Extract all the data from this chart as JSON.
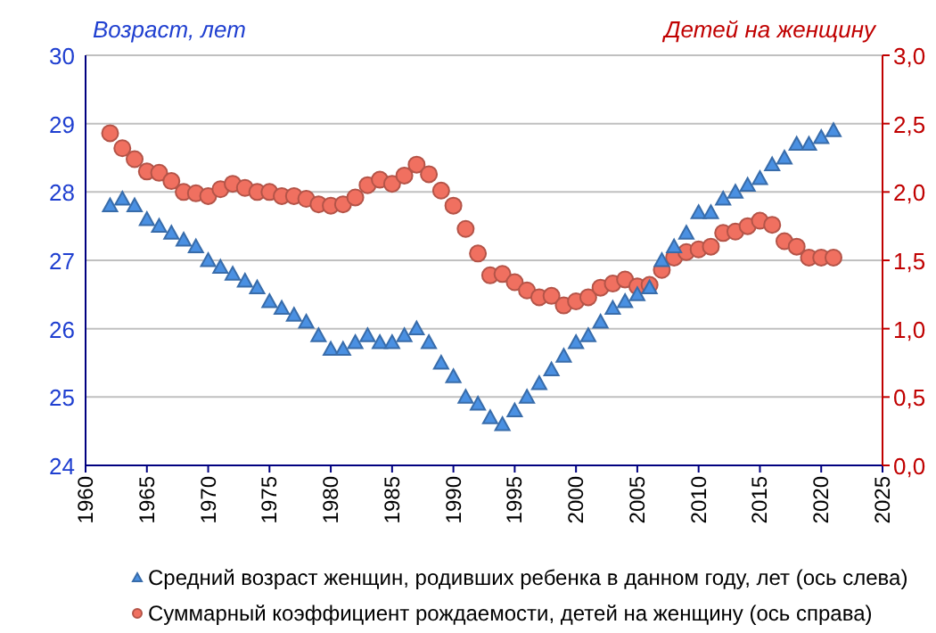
{
  "chart_data": {
    "type": "scatter",
    "ylabel": "Возраст, лет",
    "y2label": "Детей на женщину",
    "x": [
      1962,
      1963,
      1964,
      1965,
      1966,
      1967,
      1968,
      1969,
      1970,
      1971,
      1972,
      1973,
      1974,
      1975,
      1976,
      1977,
      1978,
      1979,
      1980,
      1981,
      1982,
      1983,
      1984,
      1985,
      1986,
      1987,
      1988,
      1989,
      1990,
      1991,
      1992,
      1993,
      1994,
      1995,
      1996,
      1997,
      1998,
      1999,
      2000,
      2001,
      2002,
      2003,
      2004,
      2005,
      2006,
      2007,
      2008,
      2009,
      2010,
      2011,
      2012,
      2013,
      2014,
      2015,
      2016,
      2017,
      2018,
      2019,
      2020,
      2021
    ],
    "series": [
      {
        "name": "Средний  возраст женщин, родивших ребенка в данном году, лет (ось слева)",
        "color": "#4a90e2",
        "marker": "triangle",
        "values": [
          27.8,
          27.9,
          27.8,
          27.6,
          27.5,
          27.4,
          27.3,
          27.2,
          27.0,
          26.9,
          26.8,
          26.7,
          26.6,
          26.4,
          26.3,
          26.2,
          26.1,
          25.9,
          25.7,
          25.7,
          25.8,
          25.9,
          25.8,
          25.8,
          25.9,
          26.0,
          25.8,
          25.5,
          25.3,
          25.0,
          24.9,
          24.7,
          24.6,
          24.8,
          25.0,
          25.2,
          25.4,
          25.6,
          25.8,
          25.9,
          26.1,
          26.3,
          26.4,
          26.5,
          26.6,
          27.0,
          27.2,
          27.4,
          27.7,
          27.7,
          27.9,
          28.0,
          28.1,
          28.2,
          28.4,
          28.5,
          28.7,
          28.7,
          28.8,
          28.9
        ]
      },
      {
        "name": "Суммарный коэффициент  рождаемости, детей на женщину (ось справа)",
        "color": "#f07060",
        "marker": "circle",
        "axis": "y2",
        "values": [
          2.43,
          2.32,
          2.24,
          2.15,
          2.14,
          2.08,
          2.0,
          1.99,
          1.97,
          2.02,
          2.06,
          2.03,
          2.0,
          2.0,
          1.97,
          1.97,
          1.95,
          1.91,
          1.9,
          1.91,
          1.96,
          2.05,
          2.09,
          2.06,
          2.12,
          2.2,
          2.13,
          2.01,
          1.9,
          1.73,
          1.55,
          1.39,
          1.4,
          1.34,
          1.28,
          1.23,
          1.24,
          1.17,
          1.2,
          1.23,
          1.3,
          1.33,
          1.36,
          1.31,
          1.32,
          1.43,
          1.52,
          1.56,
          1.58,
          1.6,
          1.7,
          1.71,
          1.75,
          1.79,
          1.76,
          1.64,
          1.6,
          1.52,
          1.52,
          1.52
        ]
      }
    ],
    "xlim": [
      1960,
      2025
    ],
    "xticks": [
      1960,
      1965,
      1970,
      1975,
      1980,
      1985,
      1990,
      1995,
      2000,
      2005,
      2010,
      2015,
      2020,
      2025
    ],
    "ylim": [
      24,
      30
    ],
    "yticks": [
      24,
      25,
      26,
      27,
      28,
      29,
      30
    ],
    "y2lim": [
      0,
      3
    ],
    "y2ticks": [
      {
        "value": 0,
        "label": "0,0"
      },
      {
        "value": 0.5,
        "label": "0,5"
      },
      {
        "value": 1,
        "label": "1,0"
      },
      {
        "value": 1.5,
        "label": "1,5"
      },
      {
        "value": 2,
        "label": "2,0"
      },
      {
        "value": 2.5,
        "label": "2,5"
      },
      {
        "value": 3,
        "label": "3,0"
      }
    ],
    "grid": "y",
    "legend": "bottom"
  }
}
